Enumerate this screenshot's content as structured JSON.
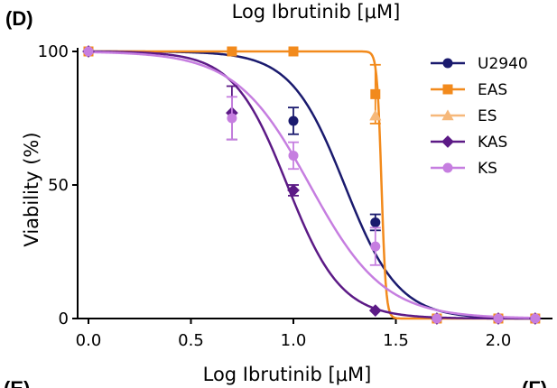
{
  "panel_label_top": "(D)",
  "panel_label_bottom_left": "(E)",
  "panel_label_bottom_right": "(F)",
  "top_title": "Log Ibrutinib [μM]",
  "chart_data": {
    "type": "line",
    "xlabel": "Log Ibrutinib [μM]",
    "ylabel": "Viability (%)",
    "xlim": [
      0.0,
      2.25
    ],
    "ylim": [
      0,
      100
    ],
    "xticks": [
      "0.0",
      "0.5",
      "1.0",
      "1.5",
      "2.0"
    ],
    "xtick_values": [
      0.0,
      0.5,
      1.0,
      1.5,
      2.0
    ],
    "yticks": [
      "0",
      "50",
      "100"
    ],
    "ytick_values": [
      0,
      50,
      100
    ],
    "grid": false,
    "legend_position": "top-right",
    "series": [
      {
        "name": "U2940",
        "color": "#1a1a6e",
        "marker": "circle",
        "x": [
          0.0,
          1.0,
          1.4,
          1.7,
          2.0,
          2.18
        ],
        "y": [
          100,
          74,
          36,
          0,
          0,
          0
        ],
        "err": [
          0,
          5,
          3,
          0,
          0,
          0
        ],
        "fit": {
          "ic50_log": 1.25,
          "hill": 3.3
        }
      },
      {
        "name": "EAS",
        "color": "#f28a1c",
        "marker": "square",
        "x": [
          0.0,
          0.7,
          1.0,
          1.4,
          1.7,
          2.0,
          2.18
        ],
        "y": [
          100,
          100,
          100,
          84,
          0,
          0,
          0
        ],
        "err": [
          0,
          0,
          0,
          11,
          0,
          0,
          0
        ],
        "fit": {
          "ic50_log": 1.43,
          "hill": 40
        }
      },
      {
        "name": "ES",
        "color": "#f6b87a",
        "marker": "triangle",
        "x": [
          1.4
        ],
        "y": [
          76
        ],
        "err": [
          0
        ],
        "fit": null
      },
      {
        "name": "KAS",
        "color": "#5c1a86",
        "marker": "diamond",
        "x": [
          0.0,
          0.7,
          1.0,
          1.4,
          1.7,
          2.0,
          2.18
        ],
        "y": [
          100,
          77,
          48,
          3,
          0,
          0,
          0
        ],
        "err": [
          0,
          10,
          2,
          0,
          0,
          0,
          0
        ],
        "fit": {
          "ic50_log": 0.97,
          "hill": 3.3
        }
      },
      {
        "name": "KS",
        "color": "#c67ee0",
        "marker": "circle",
        "x": [
          0.0,
          0.7,
          1.0,
          1.4,
          1.7,
          2.0,
          2.18
        ],
        "y": [
          100,
          75,
          61,
          27,
          0,
          0,
          0
        ],
        "err": [
          0,
          8,
          5,
          7,
          0,
          0,
          0
        ],
        "fit": {
          "ic50_log": 1.08,
          "hill": 2.4
        }
      }
    ]
  }
}
